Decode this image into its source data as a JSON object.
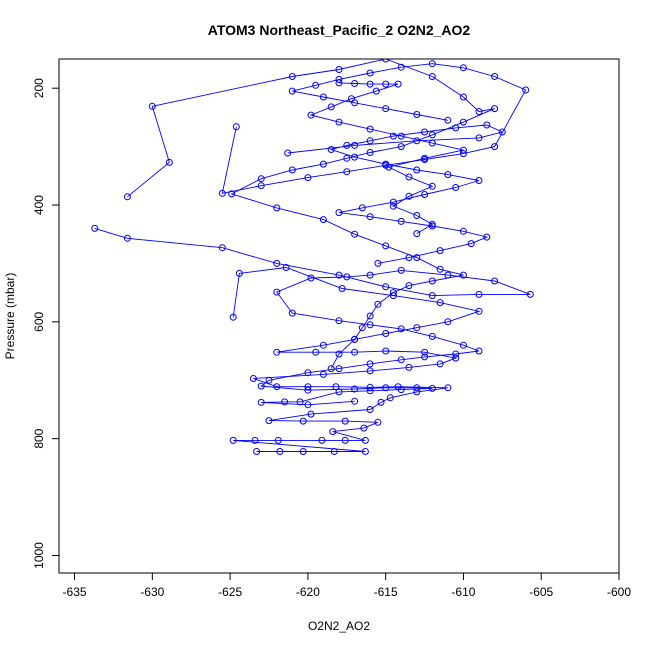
{
  "chart_data": {
    "type": "line",
    "title": "ATOM3 Northeast_Pacific_2 O2N2_AO2",
    "xlabel": "O2N2_AO2",
    "ylabel": "Pressure (mbar)",
    "xlim": [
      -636,
      -600
    ],
    "ylim": [
      1030,
      150
    ],
    "y_reversed": true,
    "grid": false,
    "xticks": [
      -635,
      -630,
      -625,
      -620,
      -615,
      -610,
      -605,
      -600
    ],
    "xtick_labels": [
      "-635",
      "-630",
      "-625",
      "-620",
      "-615",
      "-610",
      "-605",
      "-600"
    ],
    "yticks": [
      200,
      400,
      600,
      800,
      1000
    ],
    "ytick_labels": [
      "200",
      "400",
      "600",
      "800",
      "1000"
    ],
    "color": "#0000ff",
    "series": [
      {
        "points": [
          [
            -623.3,
            822
          ],
          [
            -621.8,
            822
          ],
          [
            -620.3,
            822
          ],
          [
            -618.3,
            822
          ],
          [
            -616.3,
            822
          ],
          [
            -624.8,
            803
          ],
          [
            -623.4,
            803
          ],
          [
            -621.9,
            803
          ],
          [
            -619.1,
            803
          ],
          [
            -617.6,
            803
          ],
          [
            -616.3,
            803
          ],
          [
            -618.4,
            788
          ],
          [
            -616.4,
            782
          ],
          [
            -615.5,
            772
          ],
          [
            -617.6,
            770
          ],
          [
            -620.3,
            770
          ],
          [
            -622.5,
            769
          ],
          [
            -619.8,
            758
          ],
          [
            -616.0,
            750
          ],
          [
            -615.3,
            738
          ],
          [
            -614.7,
            730
          ],
          [
            -613.0,
            720
          ],
          [
            -611.0,
            713
          ],
          [
            -614.2,
            711
          ],
          [
            -616.0,
            712
          ],
          [
            -618.2,
            711
          ],
          [
            -620.0,
            711
          ],
          [
            -622.0,
            711
          ],
          [
            -623.5,
            697
          ],
          [
            -619.0,
            690
          ],
          [
            -616.0,
            684
          ],
          [
            -613.5,
            678
          ],
          [
            -611.5,
            672
          ],
          [
            -610.5,
            662
          ],
          [
            -612.5,
            652
          ],
          [
            -615.0,
            650
          ],
          [
            -617.0,
            652
          ],
          [
            -619.5,
            652
          ],
          [
            -622.0,
            652
          ],
          [
            -619.0,
            640
          ],
          [
            -617.0,
            630
          ],
          [
            -615.0,
            620
          ],
          [
            -613.0,
            610
          ],
          [
            -611.0,
            600
          ],
          [
            -609.0,
            582
          ],
          [
            -611.5,
            567
          ],
          [
            -614.5,
            555
          ],
          [
            -617.8,
            543
          ],
          [
            -621.4,
            507
          ],
          [
            -624.4,
            517
          ],
          [
            -624.8,
            592
          ]
        ]
      },
      {
        "points": [
          [
            -633.7,
            440
          ],
          [
            -631.6,
            457
          ],
          [
            -625.5,
            473
          ],
          [
            -622.0,
            500
          ],
          [
            -618.0,
            520
          ],
          [
            -615.0,
            540
          ],
          [
            -612.0,
            555
          ],
          [
            -609.0,
            553
          ],
          [
            -605.7,
            553
          ],
          [
            -608.0,
            530
          ],
          [
            -611.0,
            520
          ],
          [
            -614.0,
            512
          ],
          [
            -616.0,
            520
          ],
          [
            -617.5,
            523
          ],
          [
            -619.8,
            525
          ],
          [
            -622.0,
            549
          ],
          [
            -621.0,
            585
          ],
          [
            -618.0,
            598
          ],
          [
            -616.0,
            605
          ],
          [
            -614.0,
            612
          ],
          [
            -612.0,
            625
          ],
          [
            -610.0,
            640
          ],
          [
            -609.0,
            650
          ],
          [
            -610.5,
            655
          ],
          [
            -612.5,
            660
          ],
          [
            -614.0,
            665
          ],
          [
            -616.0,
            672
          ],
          [
            -618.0,
            680
          ],
          [
            -620.0,
            687
          ],
          [
            -622.5,
            700
          ],
          [
            -623.0,
            710
          ],
          [
            -620.0,
            717
          ],
          [
            -617.0,
            715
          ],
          [
            -615.0,
            713
          ],
          [
            -613.0,
            713
          ],
          [
            -612.0,
            714
          ],
          [
            -614.0,
            716
          ],
          [
            -616.0,
            718
          ],
          [
            -618.0,
            720
          ],
          [
            -620.5,
            737
          ],
          [
            -621.5,
            737
          ],
          [
            -623.0,
            738
          ],
          [
            -620.0,
            742
          ],
          [
            -617.0,
            736
          ]
        ]
      },
      {
        "points": [
          [
            -631.6,
            386
          ],
          [
            -628.9,
            327
          ],
          [
            -630.0,
            231
          ],
          [
            -621.0,
            180
          ],
          [
            -618.0,
            168
          ],
          [
            -615.0,
            150
          ],
          [
            -612.0,
            180
          ],
          [
            -610.0,
            215
          ],
          [
            -609.0,
            240
          ],
          [
            -608.0,
            235
          ],
          [
            -610.0,
            258
          ],
          [
            -612.0,
            280
          ],
          [
            -614.0,
            300
          ],
          [
            -616.0,
            310
          ],
          [
            -617.5,
            320
          ],
          [
            -619.0,
            330
          ],
          [
            -621.0,
            340
          ],
          [
            -623.0,
            355
          ],
          [
            -624.9,
            381
          ],
          [
            -622.0,
            405
          ],
          [
            -619.0,
            425
          ],
          [
            -617.0,
            450
          ],
          [
            -615.0,
            470
          ],
          [
            -613.0,
            490
          ],
          [
            -611.5,
            510
          ],
          [
            -610.0,
            520
          ],
          [
            -612.0,
            530
          ],
          [
            -613.5,
            538
          ],
          [
            -614.5,
            550
          ],
          [
            -615.5,
            570
          ],
          [
            -616.0,
            590
          ],
          [
            -616.5,
            610
          ],
          [
            -617.0,
            630
          ],
          [
            -618.0,
            655
          ],
          [
            -618.5,
            680
          ]
        ]
      },
      {
        "points": [
          [
            -621.3,
            311
          ],
          [
            -617.0,
            298
          ],
          [
            -613.0,
            290
          ],
          [
            -609.0,
            285
          ],
          [
            -607.5,
            275
          ],
          [
            -608.5,
            263
          ],
          [
            -610.5,
            268
          ],
          [
            -612.5,
            275
          ],
          [
            -614.5,
            282
          ],
          [
            -616.0,
            290
          ],
          [
            -617.5,
            298
          ],
          [
            -618.5,
            305
          ],
          [
            -617.0,
            318
          ],
          [
            -615.0,
            330
          ],
          [
            -613.0,
            340
          ],
          [
            -611.0,
            348
          ],
          [
            -609.0,
            358
          ],
          [
            -610.5,
            370
          ],
          [
            -612.5,
            382
          ],
          [
            -614.5,
            395
          ],
          [
            -616.5,
            405
          ],
          [
            -618.0,
            413
          ],
          [
            -616.0,
            420
          ],
          [
            -614.0,
            428
          ],
          [
            -612.0,
            436
          ],
          [
            -610.0,
            445
          ],
          [
            -608.5,
            455
          ],
          [
            -609.5,
            466
          ],
          [
            -611.5,
            478
          ],
          [
            -613.5,
            490
          ],
          [
            -615.5,
            500
          ]
        ]
      },
      {
        "points": [
          [
            -624.6,
            266
          ],
          [
            -625.5,
            380
          ],
          [
            -623.0,
            367
          ],
          [
            -620.0,
            353
          ],
          [
            -617.5,
            343
          ],
          [
            -615.0,
            332
          ],
          [
            -612.5,
            322
          ],
          [
            -610.0,
            312
          ],
          [
            -608.0,
            300
          ],
          [
            -606.0,
            203
          ],
          [
            -608.0,
            180
          ],
          [
            -610.0,
            165
          ],
          [
            -612.0,
            158
          ],
          [
            -614.0,
            164
          ],
          [
            -616.0,
            174
          ],
          [
            -618.0,
            185
          ],
          [
            -619.5,
            195
          ],
          [
            -621.0,
            205
          ],
          [
            -619.0,
            215
          ],
          [
            -617.0,
            225
          ],
          [
            -615.0,
            235
          ],
          [
            -613.0,
            245
          ],
          [
            -611.0,
            255
          ]
        ]
      },
      {
        "points": [
          [
            -618.0,
            191
          ],
          [
            -617.0,
            192
          ],
          [
            -616.0,
            193
          ],
          [
            -615.0,
            193
          ],
          [
            -614.2,
            193
          ],
          [
            -615.6,
            205
          ],
          [
            -617.2,
            218
          ],
          [
            -618.5,
            232
          ],
          [
            -619.8,
            246
          ],
          [
            -618.0,
            258
          ],
          [
            -616.0,
            270
          ],
          [
            -614.0,
            282
          ],
          [
            -612.0,
            294
          ],
          [
            -610.0,
            306
          ],
          [
            -612.5,
            320
          ],
          [
            -614.8,
            335
          ],
          [
            -613.5,
            352
          ],
          [
            -612.0,
            368
          ],
          [
            -613.5,
            385
          ],
          [
            -614.5,
            402
          ],
          [
            -613.0,
            418
          ],
          [
            -612.0,
            433
          ],
          [
            -613.0,
            449
          ]
        ]
      }
    ]
  }
}
